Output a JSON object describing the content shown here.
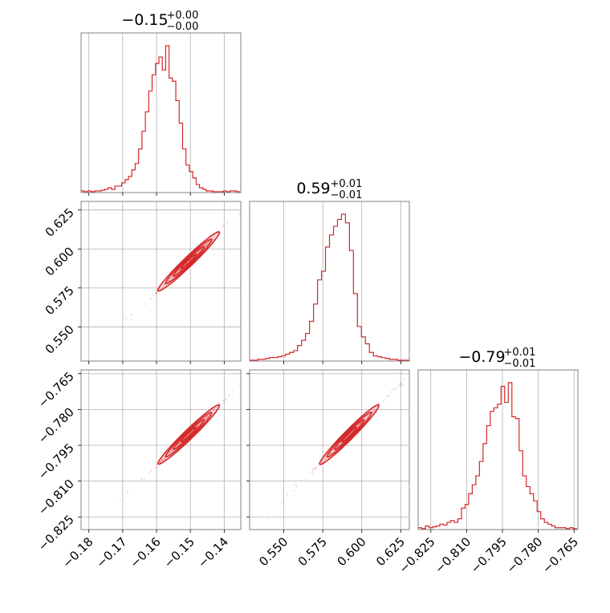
{
  "chart_data": {
    "type": "corner",
    "color": "#d62728",
    "parameters": [
      {
        "title_value": "−0.15",
        "title_plus": "+0.00",
        "title_minus": "−0.00",
        "range": [
          -0.1823,
          -0.1351
        ],
        "ticks": [
          -0.18,
          -0.17,
          -0.16,
          -0.15,
          -0.14
        ],
        "tick_labels": [
          "−0.18",
          "−0.17",
          "−0.16",
          "−0.15",
          "−0.14"
        ],
        "hist": {
          "edges_start": -0.1823,
          "bin_width": 0.001,
          "counts": [
            0.01,
            0.005,
            0.01,
            0.005,
            0.01,
            0.01,
            0.015,
            0.02,
            0.03,
            0.02,
            0.04,
            0.04,
            0.06,
            0.08,
            0.1,
            0.14,
            0.18,
            0.27,
            0.38,
            0.5,
            0.63,
            0.73,
            0.8,
            0.84,
            0.76,
            0.91,
            0.71,
            0.69,
            0.57,
            0.43,
            0.27,
            0.17,
            0.13,
            0.09,
            0.05,
            0.03,
            0.02,
            0.01,
            0.01,
            0.005,
            0.005,
            0.005,
            0.01,
            0.005,
            0.01,
            0.01,
            0.005
          ]
        }
      },
      {
        "title_value": "0.59",
        "title_plus": "+0.01",
        "title_minus": "−0.01",
        "range": [
          0.5281,
          0.6305
        ],
        "ticks": [
          0.55,
          0.575,
          0.6,
          0.625
        ],
        "tick_labels": [
          "0.550",
          "0.575",
          "0.600",
          "0.625"
        ],
        "hist": {
          "edges_start": 0.5281,
          "bin_width": 0.00256,
          "counts": [
            0.005,
            0.005,
            0.01,
            0.01,
            0.015,
            0.02,
            0.02,
            0.025,
            0.03,
            0.04,
            0.05,
            0.06,
            0.09,
            0.12,
            0.16,
            0.23,
            0.33,
            0.47,
            0.52,
            0.66,
            0.73,
            0.78,
            0.82,
            0.85,
            0.8,
            0.64,
            0.39,
            0.2,
            0.14,
            0.1,
            0.05,
            0.03,
            0.025,
            0.02,
            0.015,
            0.01,
            0.01,
            0.005,
            0.005,
            0.005
          ]
        }
      },
      {
        "title_value": "−0.79",
        "title_plus": "+0.01",
        "title_minus": "−0.01",
        "range": [
          -0.8303,
          -0.7634
        ],
        "ticks": [
          -0.825,
          -0.81,
          -0.795,
          -0.78,
          -0.765
        ],
        "tick_labels": [
          "−0.825",
          "−0.810",
          "−0.795",
          "−0.780",
          "−0.765"
        ],
        "hist": {
          "edges_start": -0.8303,
          "bin_width": 0.00151,
          "counts": [
            0.01,
            0.005,
            0.02,
            0.01,
            0.015,
            0.02,
            0.03,
            0.025,
            0.04,
            0.05,
            0.04,
            0.06,
            0.12,
            0.14,
            0.2,
            0.25,
            0.3,
            0.38,
            0.48,
            0.58,
            0.66,
            0.68,
            0.7,
            0.8,
            0.71,
            0.82,
            0.63,
            0.62,
            0.44,
            0.3,
            0.24,
            0.2,
            0.16,
            0.1,
            0.06,
            0.04,
            0.03,
            0.02,
            0.01,
            0.01,
            0.01,
            0.005,
            0.01,
            0.005
          ]
        }
      }
    ],
    "joint": {
      "correlation": 0.995,
      "centers": [
        -0.1505,
        0.592,
        -0.7905
      ],
      "sigmas": [
        0.0045,
        0.0095,
        0.0062
      ],
      "contour_levels_sigma": [
        0.5,
        1.0,
        1.5,
        2.0
      ]
    },
    "grid": true,
    "layout": "lower-triangle"
  }
}
